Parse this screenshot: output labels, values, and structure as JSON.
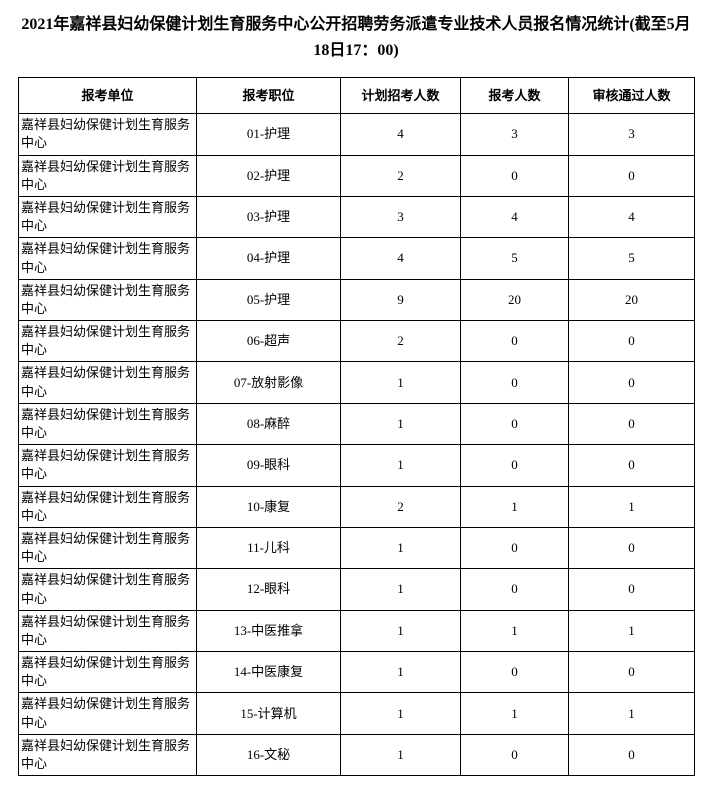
{
  "title": "2021年嘉祥县妇幼保健计划生育服务中心公开招聘劳务派遣专业技术人员报名情况统计(截至5月18日17：00)",
  "columns": [
    "报考单位",
    "报考职位",
    "计划招考人数",
    "报考人数",
    "审核通过人数"
  ],
  "unit": "嘉祥县妇幼保健计划生育服务中心",
  "rows": [
    {
      "position": "01-护理",
      "plan": 4,
      "applied": 3,
      "passed": 3
    },
    {
      "position": "02-护理",
      "plan": 2,
      "applied": 0,
      "passed": 0
    },
    {
      "position": "03-护理",
      "plan": 3,
      "applied": 4,
      "passed": 4
    },
    {
      "position": "04-护理",
      "plan": 4,
      "applied": 5,
      "passed": 5
    },
    {
      "position": "05-护理",
      "plan": 9,
      "applied": 20,
      "passed": 20
    },
    {
      "position": "06-超声",
      "plan": 2,
      "applied": 0,
      "passed": 0
    },
    {
      "position": "07-放射影像",
      "plan": 1,
      "applied": 0,
      "passed": 0
    },
    {
      "position": "08-麻醉",
      "plan": 1,
      "applied": 0,
      "passed": 0
    },
    {
      "position": "09-眼科",
      "plan": 1,
      "applied": 0,
      "passed": 0
    },
    {
      "position": "10-康复",
      "plan": 2,
      "applied": 1,
      "passed": 1
    },
    {
      "position": "11-儿科",
      "plan": 1,
      "applied": 0,
      "passed": 0
    },
    {
      "position": "12-眼科",
      "plan": 1,
      "applied": 0,
      "passed": 0
    },
    {
      "position": "13-中医推拿",
      "plan": 1,
      "applied": 1,
      "passed": 1
    },
    {
      "position": "14-中医康复",
      "plan": 1,
      "applied": 0,
      "passed": 0
    },
    {
      "position": "15-计算机",
      "plan": 1,
      "applied": 1,
      "passed": 1
    },
    {
      "position": "16-文秘",
      "plan": 1,
      "applied": 0,
      "passed": 0
    }
  ]
}
